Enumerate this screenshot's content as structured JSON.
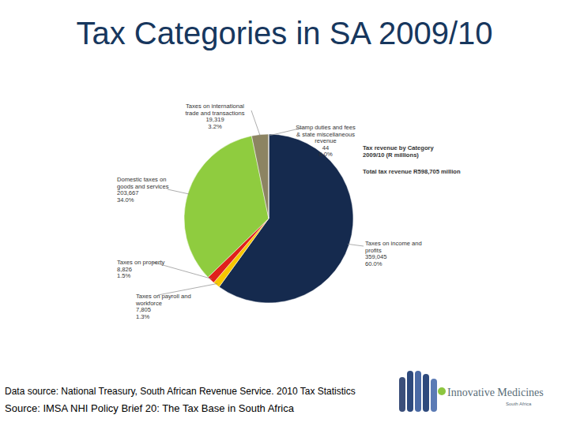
{
  "chart_data": {
    "type": "pie",
    "title": "Tax Categories in SA 2009/10",
    "subtitle": "Tax revenue by Category 2009/10 (R millions)",
    "annotations": [
      "Total tax revenue R598,705 million"
    ],
    "categories": [
      "Taxes on income and profits",
      "Taxes on payroll and workforce",
      "Taxes on property",
      "Domestic taxes on goods and services",
      "Taxes on international trade and transactions",
      "Stamp duties and fees & state miscellaneous revenue"
    ],
    "values": [
      359045,
      7805,
      8826,
      203667,
      19319,
      44
    ],
    "value_labels": [
      "359,045",
      "7,805",
      "8,826",
      "203,667",
      "19,319",
      "44"
    ],
    "percent_labels": [
      "60.0%",
      "1.3%",
      "1.5%",
      "34.0%",
      "3.2%",
      "0.0%"
    ],
    "colors": [
      "#152a4e",
      "#f7c600",
      "#e0201b",
      "#8fcc3f",
      "#8c8462",
      "#b8b8b8"
    ],
    "data_labels": true,
    "footnotes": [
      "Data source: National Treasury, South African Revenue Service. 2010 Tax Statistics",
      "Source: IMSA NHI Policy Brief 20: The Tax Base in South Africa"
    ],
    "logo": [
      "Innovative Medicines",
      "South Africa"
    ]
  }
}
